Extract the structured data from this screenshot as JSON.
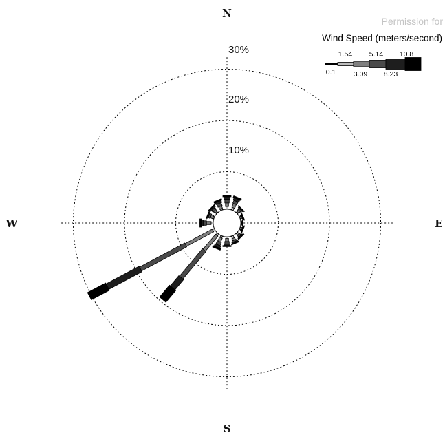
{
  "watermark": "Permission for",
  "chart_data": {
    "type": "wind-rose",
    "directions": [
      "N",
      "E",
      "S",
      "W"
    ],
    "radial_unit": "%",
    "radial_ticks": [
      10,
      20,
      30
    ],
    "radial_tick_labels": [
      "10%",
      "20%",
      "30%"
    ],
    "rlim": [
      0,
      33
    ],
    "grid": true,
    "legend": {
      "title": "Wind Speed (meters/second)",
      "placement": "top-right",
      "bins_upper_labels": [
        "1.54",
        "5.14",
        "10.8"
      ],
      "bins_lower_labels": [
        "0.1",
        "3.09",
        "8.23"
      ],
      "bins": [
        0.1,
        1.54,
        3.09,
        5.14,
        8.23,
        10.8
      ],
      "colors": [
        "#ffffff",
        "#bdbdbd",
        "#7f7f7f",
        "#4a4a4a",
        "#1e1e1e",
        "#000000"
      ]
    },
    "calm_circle_percent": 1.9,
    "petals": [
      {
        "direction_deg": 0,
        "segments": [
          0.5,
          0.7,
          0.7,
          0.5,
          0.3
        ]
      },
      {
        "direction_deg": 22.5,
        "segments": [
          0.5,
          0.8,
          0.6,
          0.5,
          0.3
        ]
      },
      {
        "direction_deg": 45,
        "segments": [
          0.3,
          0.4,
          0.3,
          0.2,
          0.1
        ]
      },
      {
        "direction_deg": 67.5,
        "segments": [
          0.2,
          0.2,
          0.1,
          0.1,
          0.1
        ]
      },
      {
        "direction_deg": 90,
        "segments": [
          0.1,
          0.1,
          0.1,
          0.05,
          0.05
        ]
      },
      {
        "direction_deg": 112.5,
        "segments": [
          0.2,
          0.2,
          0.1,
          0.1,
          0.1
        ]
      },
      {
        "direction_deg": 135,
        "segments": [
          0.4,
          0.3,
          0.2,
          0.2,
          0.1
        ]
      },
      {
        "direction_deg": 157.5,
        "segments": [
          0.5,
          0.4,
          0.3,
          0.2,
          0.2
        ]
      },
      {
        "direction_deg": 180,
        "segments": [
          0.3,
          0.6,
          0.5,
          0.3,
          0.2
        ]
      },
      {
        "direction_deg": 202.5,
        "segments": [
          0.4,
          0.8,
          0.7,
          0.5,
          0.3
        ]
      },
      {
        "direction_deg": 220,
        "segments": [
          0.4,
          3.8,
          7.0,
          2.6,
          3.0
        ]
      },
      {
        "direction_deg": 242,
        "segments": [
          0.4,
          6.0,
          10.0,
          7.3,
          4.0
        ]
      },
      {
        "direction_deg": 270,
        "segments": [
          0.4,
          0.9,
          0.6,
          0.4,
          0.3
        ]
      },
      {
        "direction_deg": 292.5,
        "segments": [
          0.2,
          0.5,
          0.4,
          0.2,
          0.1
        ]
      },
      {
        "direction_deg": 315,
        "segments": [
          0.3,
          0.4,
          0.4,
          0.3,
          0.2
        ]
      },
      {
        "direction_deg": 337.5,
        "segments": [
          0.3,
          0.5,
          0.6,
          0.4,
          0.3
        ]
      }
    ]
  }
}
